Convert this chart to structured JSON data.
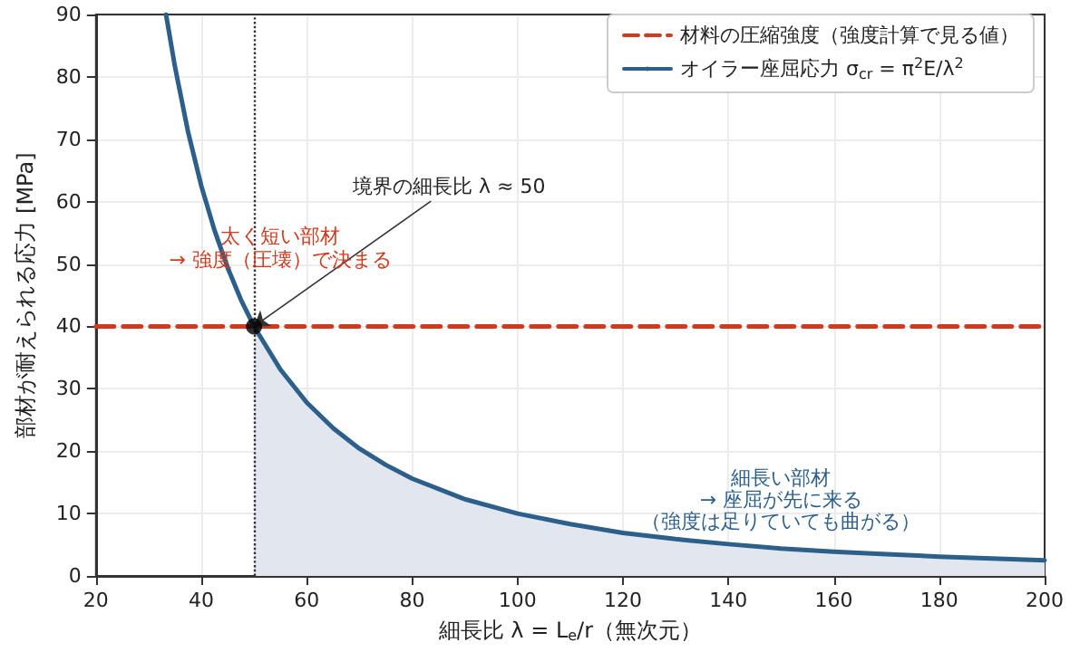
{
  "chart_data": {
    "type": "line",
    "xlabel": "細長比 λ = L$_{e}$/r（無次元）",
    "ylabel": "部材が耐えられる応力 [MPa]",
    "xlim": [
      20,
      200
    ],
    "xticks": [
      20,
      40,
      60,
      80,
      100,
      120,
      140,
      160,
      180,
      200
    ],
    "ylim": [
      0,
      90
    ],
    "yticks": [
      0,
      10,
      20,
      30,
      40,
      50,
      60,
      70,
      80,
      90
    ],
    "grid": true,
    "legend": "top right",
    "series": [
      {
        "name": "材料の圧縮強度（強度計算で見る値）",
        "color": "#d03a1e",
        "line_style": "dashed",
        "x": [
          20,
          200
        ],
        "values": [
          40,
          40
        ]
      },
      {
        "name": "オイラー座屈応力 σ$_{cr}$ = π$^{2}$E/λ$^{2}$",
        "color": "#2c5f8a",
        "x": [
          33.3,
          35,
          37.5,
          40,
          42.5,
          45,
          47.5,
          50,
          55,
          60,
          65,
          70,
          75,
          80,
          90,
          100,
          110,
          120,
          130,
          140,
          150,
          160,
          170,
          180,
          190,
          200
        ],
        "values": [
          90,
          81.6,
          71.1,
          62.5,
          55.4,
          49.4,
          44.3,
          40,
          33.1,
          27.8,
          23.7,
          20.4,
          17.8,
          15.6,
          12.3,
          10,
          8.3,
          6.9,
          5.9,
          5.1,
          4.4,
          3.9,
          3.5,
          3.1,
          2.8,
          2.5
        ]
      },
      {
        "type": "area",
        "color": "#e2e7ef",
        "x": [
          50,
          55,
          60,
          65,
          70,
          75,
          80,
          90,
          100,
          110,
          120,
          130,
          140,
          150,
          160,
          170,
          180,
          190,
          200
        ],
        "values": [
          40,
          33.1,
          27.8,
          23.7,
          20.4,
          17.8,
          15.6,
          12.3,
          10,
          8.3,
          6.9,
          5.9,
          5.1,
          4.4,
          3.9,
          3.5,
          3.1,
          2.8,
          2.5
        ]
      },
      {
        "type": "scatter",
        "color": "#000000",
        "x": [
          50
        ],
        "values": [
          40
        ]
      }
    ],
    "ref_lines": [
      {
        "axis": "x",
        "value": 50,
        "color": "#333333",
        "line_style": "dotted"
      }
    ],
    "annotations": [
      {
        "text": "境界の細長比 λ ≈ 50",
        "x": 50,
        "y": 40
      },
      "太く短い部材",
      "→ 強度（圧壊）で決まる",
      "細長い部材",
      "→ 座屈が先に来る",
      "（強度は足りていても曲がる）"
    ]
  }
}
